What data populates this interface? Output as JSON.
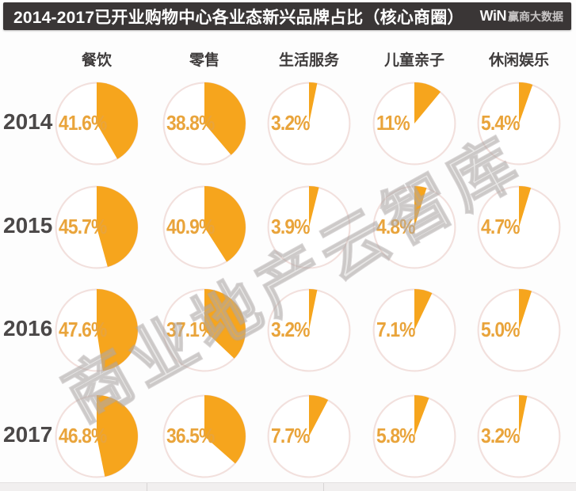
{
  "header": {
    "title": "2014-2017已开业购物中心各业态新兴品牌占比（核心商圈）",
    "logo_win": "WiN",
    "logo_text": "赢商大数据"
  },
  "watermark": "商业地产云智库",
  "chart_data": {
    "type": "pie",
    "layout": "grid of pie charts: rows = years, columns = business categories",
    "unit": "%",
    "start_angle_deg": 0,
    "direction": "clockwise",
    "columns": [
      "餐饮",
      "零售",
      "生活服务",
      "儿童亲子",
      "休闲娱乐"
    ],
    "rows": [
      "2014",
      "2015",
      "2016",
      "2017"
    ],
    "series": [
      {
        "name": "2014",
        "values": [
          41.6,
          38.8,
          3.2,
          11,
          5.4
        ],
        "labels": [
          "41.6%",
          "38.8%",
          "3.2%",
          "11%",
          "5.4%"
        ]
      },
      {
        "name": "2015",
        "values": [
          45.7,
          40.9,
          3.9,
          4.8,
          4.7
        ],
        "labels": [
          "45.7%",
          "40.9%",
          "3.9%",
          "4.8%",
          "4.7%"
        ]
      },
      {
        "name": "2016",
        "values": [
          47.6,
          37.1,
          3.2,
          7.1,
          5.0
        ],
        "labels": [
          "47.6%",
          "37.1%",
          "3.2%",
          "7.1%",
          "5.0%"
        ]
      },
      {
        "name": "2017",
        "values": [
          46.8,
          36.5,
          7.7,
          5.8,
          3.2
        ],
        "labels": [
          "46.8%",
          "36.5%",
          "7.7%",
          "5.8%",
          "3.2%"
        ]
      }
    ],
    "colors": {
      "wedge": "#F6A51D",
      "ring": "#F2E0DD",
      "value_label": "#E9A43B",
      "year_label": "#4B4848",
      "column_header": "#3E3B3B",
      "title_bar_bg": "#3A3636",
      "title_text": "#FFFFFF"
    }
  }
}
